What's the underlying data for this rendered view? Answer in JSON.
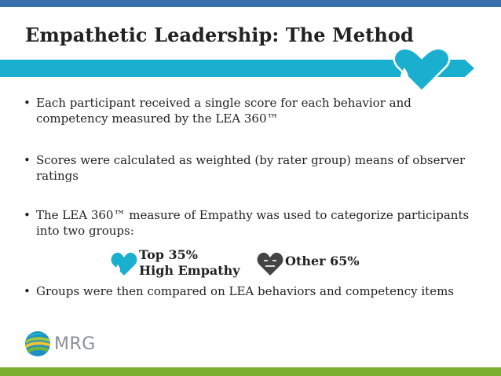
{
  "slide": {
    "title": "Empathetic Leadership: The Method",
    "bullets": [
      "Each participant received a single score for each behavior and competency measured by the LEA 360™",
      "Scores were calculated as weighted (by rater group) means of observer ratings",
      "The LEA 360™ measure of Empathy was used to categorize participants into two groups:",
      "Groups were then compared on LEA behaviors and competency items"
    ],
    "bullet_marker": "•",
    "groups": [
      {
        "line1": "Top 35%",
        "line2": "High Empathy",
        "icon": "cyan-heart-with-drop-icon"
      },
      {
        "label": "Other 65%",
        "icon": "gray-heart-neutral-face-icon"
      }
    ],
    "logo": {
      "text": "MRG"
    }
  },
  "colors": {
    "top_bar": "#3a6fb0",
    "ribbon": "#1aafcf",
    "heart_cyan": "#1aafcf",
    "heart_gray": "#444444",
    "bottom_bar": "#7ab02f",
    "logo_text": "#8a8f95"
  }
}
